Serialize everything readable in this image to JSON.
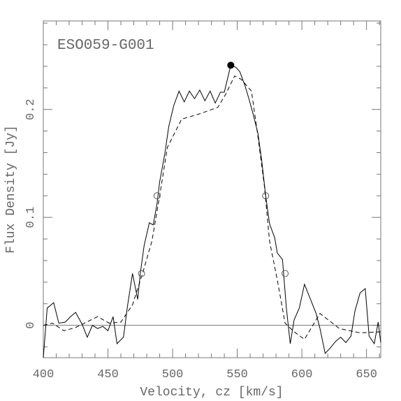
{
  "chart_data": {
    "type": "line",
    "annotation": "ESO059-G001",
    "xlabel": "Velocity, cz [km/s]",
    "ylabel": "Flux Density [Jy]",
    "xlim": [
      400,
      661
    ],
    "ylim": [
      -0.03,
      0.282
    ],
    "xticks": [
      400,
      450,
      500,
      550,
      600,
      650
    ],
    "yticks": [
      0,
      0.1,
      0.2
    ],
    "xticks_minor": [
      410,
      420,
      430,
      440,
      460,
      470,
      480,
      490,
      510,
      520,
      530,
      540,
      560,
      570,
      580,
      590,
      610,
      620,
      630,
      640,
      660
    ],
    "yticks_minor": [
      -0.02,
      0.02,
      0.04,
      0.06,
      0.08,
      0.12,
      0.14,
      0.16,
      0.18,
      0.22,
      0.24,
      0.26,
      0.28
    ],
    "hline": 0,
    "color": "#000000",
    "series": [
      {
        "style": "solid",
        "x": [
          400,
          403,
          408,
          412,
          417,
          421,
          425,
          430,
          434,
          438,
          442,
          446,
          450,
          454,
          457,
          462,
          465,
          469,
          473,
          475,
          478,
          482,
          485,
          488,
          490,
          494,
          497,
          501,
          505,
          509,
          513,
          517,
          521,
          525,
          529,
          533,
          537,
          540,
          545,
          549,
          552,
          556,
          559,
          562,
          566,
          569,
          572,
          575,
          579,
          581,
          585,
          588,
          591,
          594,
          598,
          602,
          607,
          611,
          614,
          618,
          622,
          626,
          630,
          634,
          638,
          641,
          645,
          649,
          652,
          656,
          659,
          661
        ],
        "values": [
          -0.03,
          0.016,
          0.021,
          0.002,
          0.003,
          0.008,
          0.012,
          0.001,
          -0.011,
          0,
          -0.003,
          -0.001,
          -0.005,
          0.008,
          -0.017,
          -0.011,
          0.017,
          0.048,
          0.024,
          0.048,
          0.074,
          0.095,
          0.093,
          0.113,
          0.133,
          0.159,
          0.184,
          0.204,
          0.217,
          0.207,
          0.217,
          0.21,
          0.218,
          0.208,
          0.217,
          0.206,
          0.216,
          0.216,
          0.241,
          0.239,
          0.235,
          0.222,
          0.21,
          0.197,
          0.178,
          0.152,
          0.12,
          0.094,
          0.081,
          0.067,
          0.061,
          0.016,
          -0.017,
          0.005,
          0.016,
          0.038,
          0.023,
          0.011,
          -0.003,
          -0.026,
          -0.021,
          -0.015,
          -0.011,
          -0.016,
          -0.01,
          0.013,
          0.03,
          0.034,
          -0.01,
          -0.017,
          0.003,
          -0.016
        ]
      },
      {
        "style": "dashed",
        "x": [
          400,
          407,
          416,
          425,
          442,
          451,
          460,
          469,
          477,
          484,
          490,
          496,
          507,
          521,
          535,
          541,
          548,
          553,
          561,
          566,
          571,
          575,
          581,
          587,
          594,
          602,
          614,
          629,
          645,
          661
        ],
        "values": [
          0,
          0.002,
          -0.005,
          -0.002,
          0.008,
          0.002,
          0.003,
          0.019,
          0.049,
          0.078,
          0.12,
          0.165,
          0.191,
          0.196,
          0.202,
          0.214,
          0.231,
          0.228,
          0.217,
          0.175,
          0.129,
          0.078,
          0.042,
          0.002,
          -0.006,
          -0.013,
          0.011,
          -0.003,
          -0.007,
          -0.006
        ]
      }
    ],
    "markers": [
      {
        "style": "filled",
        "x": [
          545
        ],
        "values": [
          0.241
        ]
      },
      {
        "style": "open",
        "x": [
          476,
          488,
          572,
          587
        ],
        "values": [
          0.048,
          0.12,
          0.12,
          0.048
        ]
      }
    ]
  }
}
